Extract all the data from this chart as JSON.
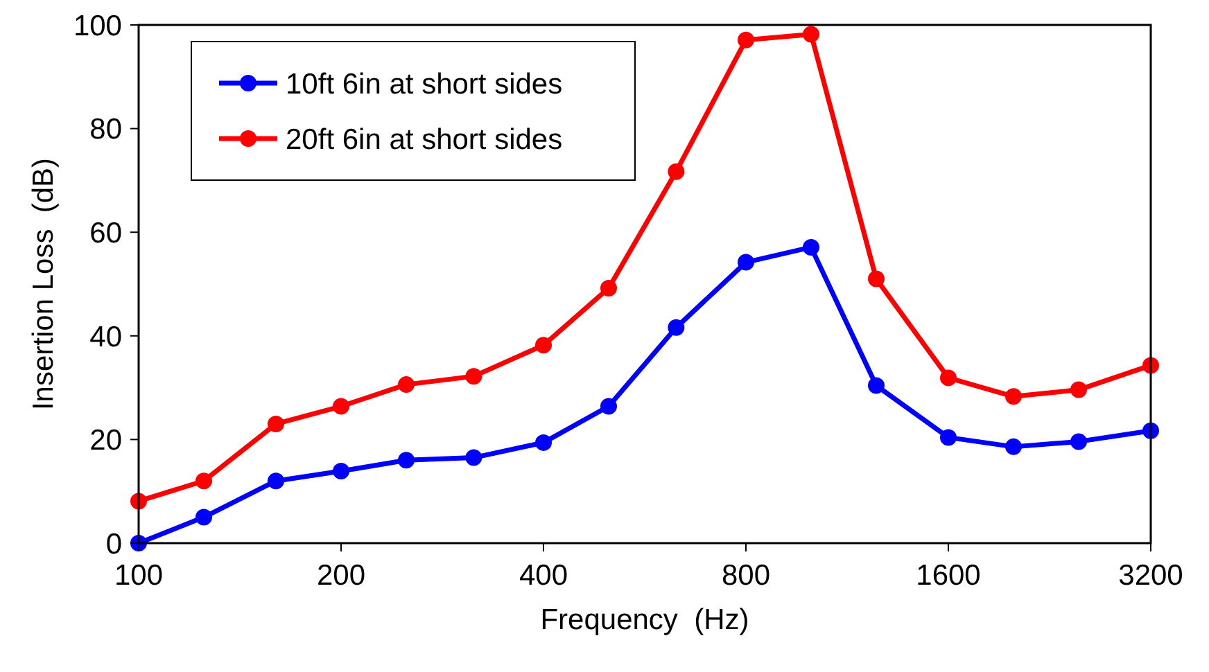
{
  "chart_data": {
    "type": "line",
    "xlabel": "Frequency  (Hz)",
    "ylabel": "Insertion Loss  (dB)",
    "log": "x",
    "xlim": [
      100,
      3200
    ],
    "xticks": [
      100,
      200,
      400,
      800,
      1600,
      3200
    ],
    "ylim": [
      0,
      100
    ],
    "yticks": [
      0,
      20,
      40,
      60,
      80,
      100
    ],
    "grid": false,
    "legend": "top left",
    "marker": "circle",
    "line_style": "solid",
    "x": [
      100,
      125,
      160,
      200,
      250,
      315,
      400,
      500,
      630,
      800,
      1000,
      1250,
      1600,
      2000,
      2500,
      3200
    ],
    "series": [
      {
        "name": "10ft 6in at short sides",
        "color": "#0000ff",
        "values": [
          0,
          5,
          12,
          13.9,
          16,
          16.5,
          19.4,
          26.4,
          41.6,
          54.2,
          57.1,
          30.4,
          20.4,
          18.6,
          19.6,
          21.7
        ]
      },
      {
        "name": "20ft 6in at short sides",
        "color": "#ff0000",
        "values": [
          8.1,
          12,
          23,
          26.4,
          30.6,
          32.2,
          38.2,
          49.2,
          71.7,
          97.1,
          98.2,
          51,
          31.9,
          28.3,
          29.6,
          34.3
        ]
      }
    ]
  }
}
